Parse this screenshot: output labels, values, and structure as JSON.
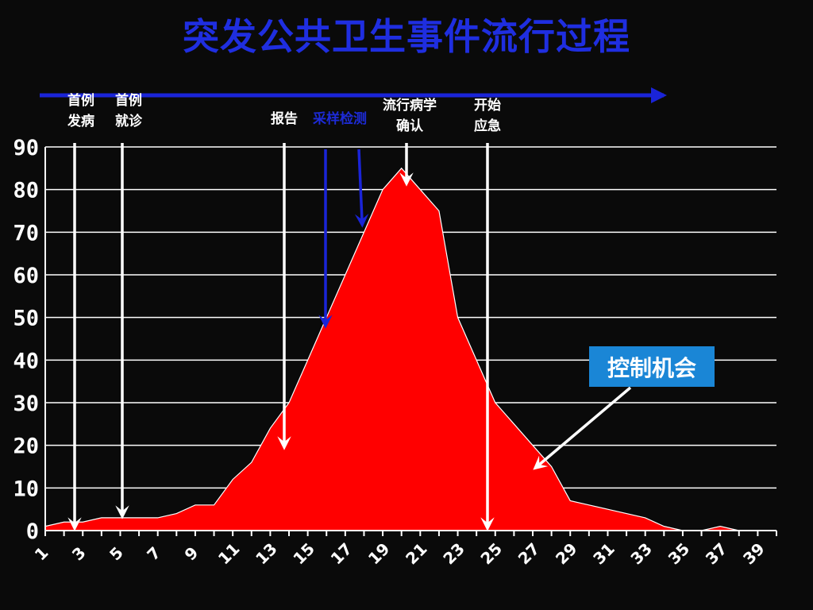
{
  "title": "突发公共卫生事件流行过程",
  "chart_data": {
    "type": "area",
    "x": [
      1,
      2,
      3,
      4,
      5,
      6,
      7,
      8,
      9,
      10,
      11,
      12,
      13,
      14,
      15,
      16,
      17,
      18,
      19,
      20,
      21,
      22,
      23,
      24,
      25,
      26,
      27,
      28,
      29,
      30,
      31,
      32,
      33,
      34,
      35,
      36,
      37,
      38,
      39,
      40
    ],
    "values": [
      1,
      2,
      2,
      3,
      3,
      3,
      3,
      4,
      6,
      6,
      12,
      16,
      24,
      30,
      40,
      50,
      60,
      70,
      80,
      85,
      80,
      75,
      50,
      40,
      30,
      25,
      20,
      15,
      7,
      6,
      5,
      4,
      3,
      1,
      0,
      0,
      1,
      0,
      0,
      0
    ],
    "xticks": [
      "1",
      "3",
      "5",
      "7",
      "9",
      "11",
      "13",
      "15",
      "17",
      "19",
      "21",
      "23",
      "25",
      "27",
      "29",
      "31",
      "33",
      "35",
      "37",
      "39"
    ],
    "yticks": [
      "0",
      "10",
      "20",
      "30",
      "40",
      "50",
      "60",
      "70",
      "80",
      "90"
    ],
    "ylim": [
      0,
      90
    ],
    "area_color": "#ff0000",
    "grid": true
  },
  "annotations": {
    "first_onset": {
      "line1": "首例",
      "line2": "发病"
    },
    "first_visit": {
      "line1": "首例",
      "line2": "就诊"
    },
    "report": "报告",
    "sampling": "采样检测",
    "epi_confirm": {
      "line1": "流行病学",
      "line2": "确认"
    },
    "emergency": {
      "line1": "开始",
      "line2": "应急"
    },
    "control": "控制机会"
  },
  "colors": {
    "title": "#1f2ee0",
    "area": "#ff0000",
    "timeline_arrow": "#1a24d8",
    "callout": "#1a86d6"
  }
}
